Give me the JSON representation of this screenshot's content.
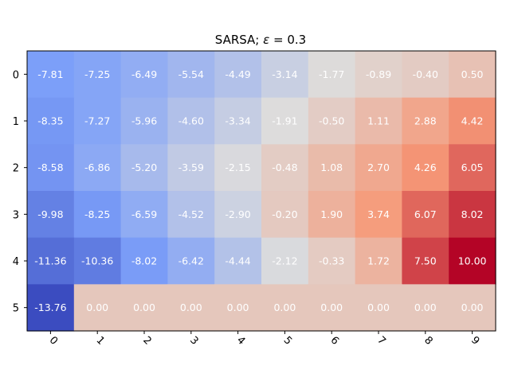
{
  "chart_data": {
    "type": "heatmap",
    "title_prefix": "SARSA; ",
    "title_symbol": "ε",
    "title_suffix": " = 0.3",
    "x_labels": [
      "0",
      "1",
      "2",
      "3",
      "4",
      "5",
      "6",
      "7",
      "8",
      "9"
    ],
    "y_labels": [
      "0",
      "1",
      "2",
      "3",
      "4",
      "5"
    ],
    "colormap": "coolwarm",
    "vmin": -13.76,
    "vmax": 10.0,
    "values": [
      [
        -7.81,
        -7.25,
        -6.49,
        -5.54,
        -4.49,
        -3.14,
        -1.77,
        -0.89,
        -0.4,
        0.5
      ],
      [
        -8.35,
        -7.27,
        -5.96,
        -4.6,
        -3.34,
        -1.91,
        -0.5,
        1.11,
        2.88,
        4.42
      ],
      [
        -8.58,
        -6.86,
        -5.2,
        -3.59,
        -2.15,
        -0.48,
        1.08,
        2.7,
        4.26,
        6.05
      ],
      [
        -9.98,
        -8.25,
        -6.59,
        -4.52,
        -2.9,
        -0.2,
        1.9,
        3.74,
        6.07,
        8.02
      ],
      [
        -11.36,
        -10.36,
        -8.02,
        -6.42,
        -4.44,
        -2.12,
        -0.33,
        1.72,
        7.5,
        10.0
      ],
      [
        -13.76,
        0.0,
        0.0,
        0.0,
        0.0,
        0.0,
        0.0,
        0.0,
        0.0,
        0.0
      ]
    ],
    "cell_labels": [
      [
        "-7.81",
        "-7.25",
        "-6.49",
        "-5.54",
        "-4.49",
        "-3.14",
        "-1.77",
        "-0.89",
        "-0.40",
        "0.50"
      ],
      [
        "-8.35",
        "-7.27",
        "-5.96",
        "-4.60",
        "-3.34",
        "-1.91",
        "-0.50",
        "1.11",
        "2.88",
        "4.42"
      ],
      [
        "-8.58",
        "-6.86",
        "-5.20",
        "-3.59",
        "-2.15",
        "-0.48",
        "1.08",
        "2.70",
        "4.26",
        "6.05"
      ],
      [
        "-9.98",
        "-8.25",
        "-6.59",
        "-4.52",
        "-2.90",
        "-0.20",
        "1.90",
        "3.74",
        "6.07",
        "8.02"
      ],
      [
        "-11.36",
        "-10.36",
        "-8.02",
        "-6.42",
        "-4.44",
        "-2.12",
        "-0.33",
        "1.72",
        "7.50",
        "10.00"
      ],
      [
        "-13.76",
        "0.00",
        "0.00",
        "0.00",
        "0.00",
        "0.00",
        "0.00",
        "0.00",
        "0.00",
        "0.00"
      ]
    ],
    "x_tick_rotation": "45 degrees",
    "grid": false,
    "legend": "none",
    "cell_text_color": "#ffffff"
  }
}
